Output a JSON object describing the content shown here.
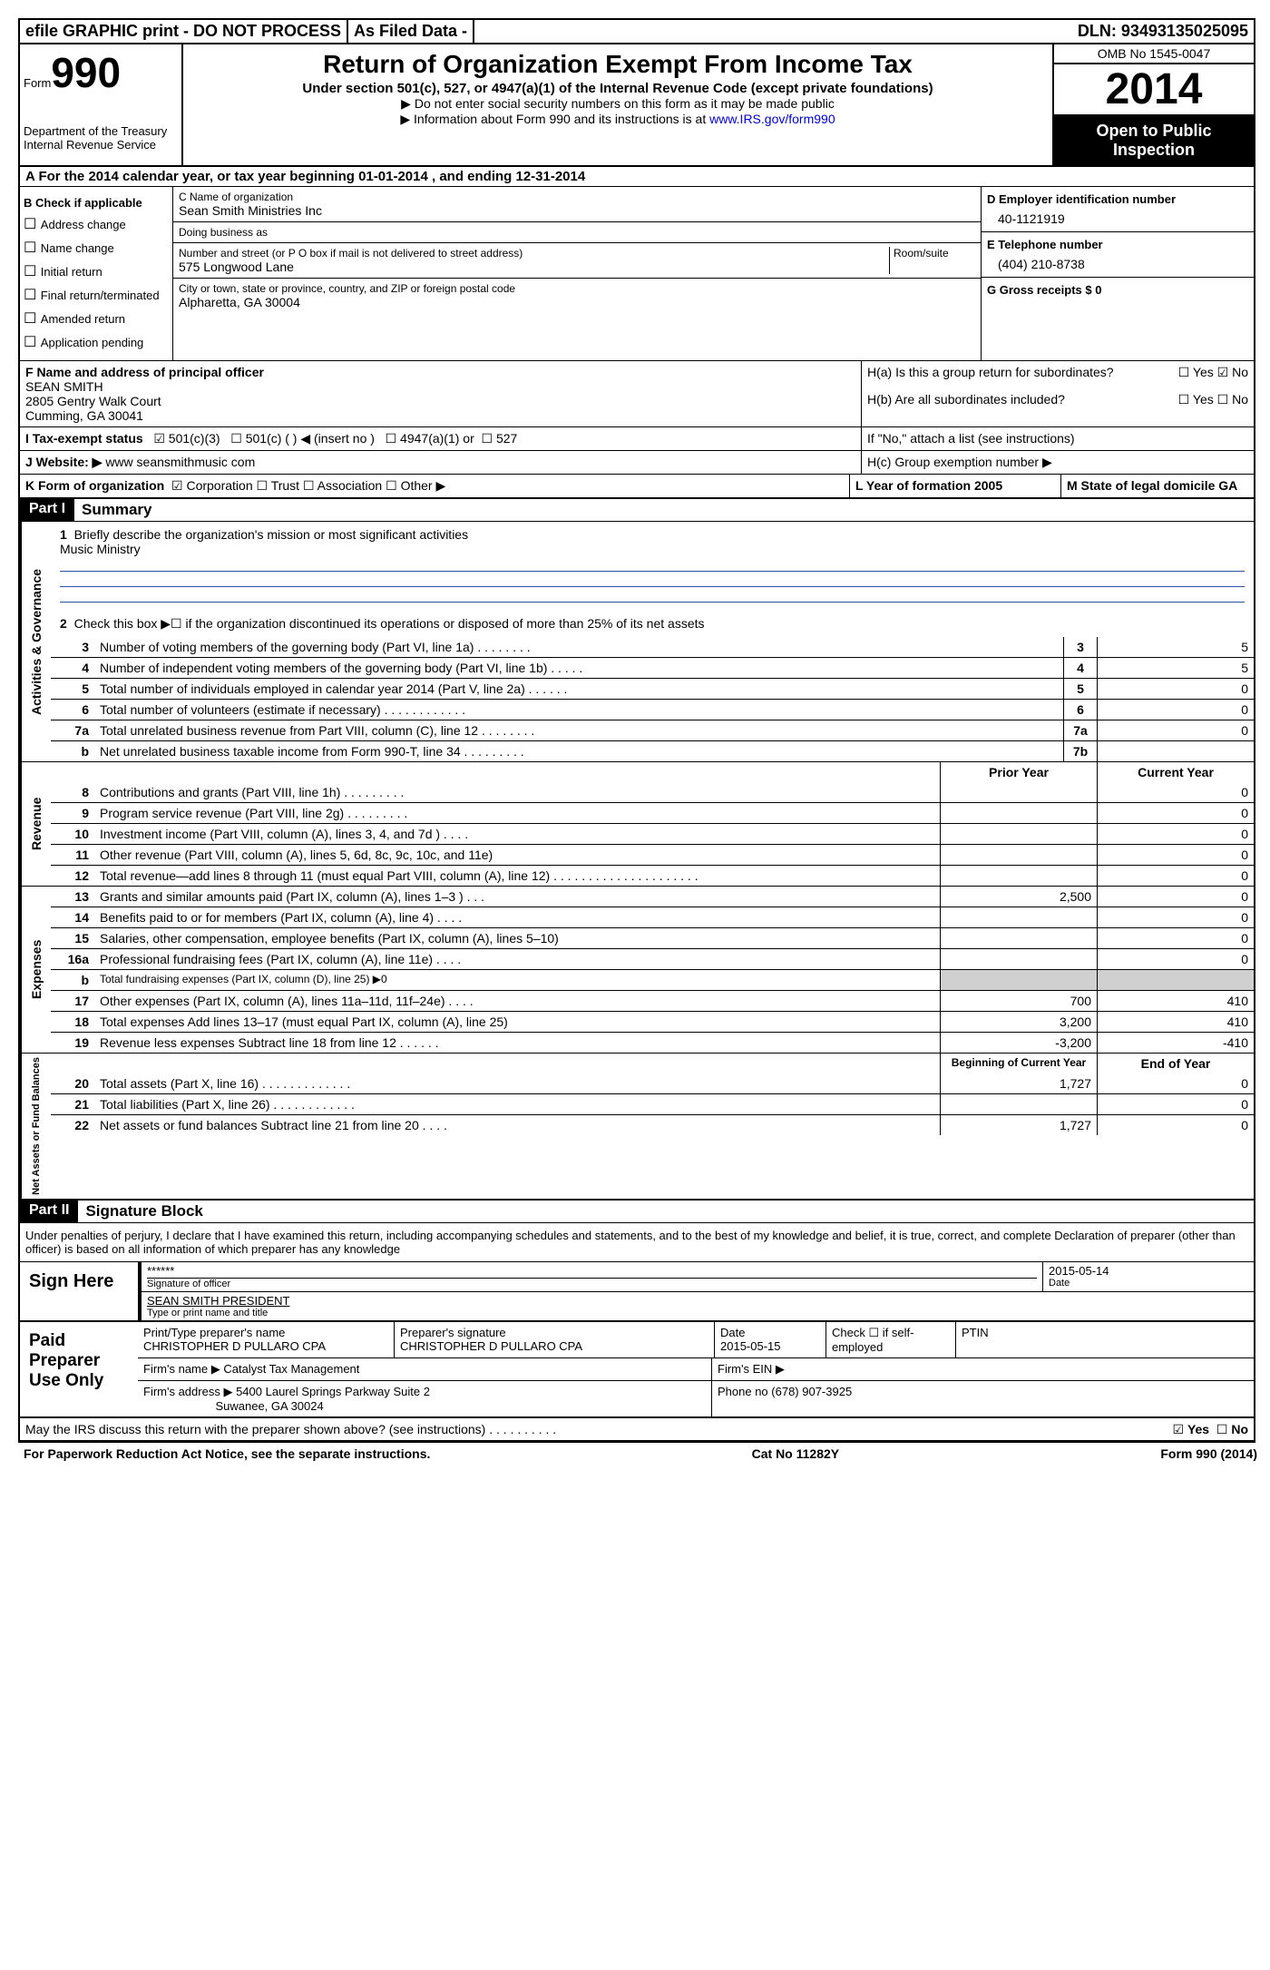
{
  "top": {
    "efile": "efile GRAPHIC print - DO NOT PROCESS",
    "asfiled": "As Filed Data -",
    "dln": "DLN: 93493135025095"
  },
  "header": {
    "form_label": "Form",
    "form_no": "990",
    "dept": "Department of the Treasury",
    "irs": "Internal Revenue Service",
    "title": "Return of Organization Exempt From Income Tax",
    "sub": "Under section 501(c), 527, or 4947(a)(1) of the Internal Revenue Code (except private foundations)",
    "note1": "▶ Do not enter social security numbers on this form as it may be made public",
    "note2": "▶ Information about Form 990 and its instructions is at",
    "irs_link": "www.IRS.gov/form990",
    "omb": "OMB No 1545-0047",
    "year": "2014",
    "open": "Open to Public Inspection"
  },
  "rowA": "A  For the 2014 calendar year, or tax year beginning 01-01-2014     , and ending 12-31-2014",
  "boxB": {
    "title": "B  Check if applicable",
    "opts": [
      "Address change",
      "Name change",
      "Initial return",
      "Final return/terminated",
      "Amended return",
      "Application pending"
    ]
  },
  "boxC": {
    "name_label": "C Name of organization",
    "name": "Sean Smith Ministries Inc",
    "dba_label": "Doing business as",
    "dba": "",
    "street_label": "Number and street (or P O  box if mail is not delivered to street address)",
    "room_label": "Room/suite",
    "street": "575 Longwood Lane",
    "city_label": "City or town, state or province, country, and ZIP or foreign postal code",
    "city": "Alpharetta, GA  30004"
  },
  "boxD": {
    "ein_label": "D Employer identification number",
    "ein": "40-1121919",
    "tel_label": "E Telephone number",
    "tel": "(404) 210-8738",
    "gross_label": "G Gross receipts $ 0"
  },
  "boxF": {
    "label": "F   Name and address of principal officer",
    "name": "SEAN SMITH",
    "addr1": "2805 Gentry Walk Court",
    "addr2": "Cumming, GA  30041"
  },
  "boxH": {
    "ha": "H(a)  Is this a group return for subordinates?",
    "ha_yes": "Yes",
    "ha_no": "No",
    "hb": "H(b)  Are all subordinates included?",
    "hb_note": "If \"No,\" attach a list  (see instructions)",
    "hc": "H(c)  Group exemption number ▶"
  },
  "rowI": {
    "label": "I   Tax-exempt status",
    "o1": "501(c)(3)",
    "o2": "501(c) (   ) ◀ (insert no )",
    "o3": "4947(a)(1) or",
    "o4": "527"
  },
  "rowJ": {
    "label": "J   Website: ▶",
    "val": "www seansmithmusic com"
  },
  "rowK": {
    "label": "K Form of organization",
    "o1": "Corporation",
    "o2": "Trust",
    "o3": "Association",
    "o4": "Other ▶",
    "L": "L Year of formation  2005",
    "M": "M State of legal domicile  GA"
  },
  "part1": {
    "header": "Part I",
    "title": "Summary",
    "q1": "Briefly describe the organization's mission or most significant activities",
    "q1_ans": "Music Ministry",
    "q2": "Check this box ▶☐ if the organization discontinued its operations or disposed of more than 25% of its net assets"
  },
  "act_gov": {
    "label": "Activities & Governance",
    "rows": [
      {
        "n": "3",
        "d": "Number of voting members of the governing body (Part VI, line 1a)   .    .    .    .    .    .    .    .",
        "k": "3",
        "v": "5"
      },
      {
        "n": "4",
        "d": "Number of independent voting members of the governing body (Part VI, line 1b)   .    .    .    .    .",
        "k": "4",
        "v": "5"
      },
      {
        "n": "5",
        "d": "Total number of individuals employed in calendar year 2014 (Part V, line 2a)   .    .    .    .    .    .",
        "k": "5",
        "v": "0"
      },
      {
        "n": "6",
        "d": "Total number of volunteers (estimate if necessary)   .    .    .    .    .    .    .    .    .    .    .    .",
        "k": "6",
        "v": "0"
      },
      {
        "n": "7a",
        "d": "Total unrelated business revenue from Part VIII, column (C), line 12   .    .    .    .    .    .    .    .",
        "k": "7a",
        "v": "0"
      },
      {
        "n": "b",
        "d": "Net unrelated business taxable income from Form 990-T, line 34   .    .    .    .    .    .    .    .    .",
        "k": "7b",
        "v": ""
      }
    ]
  },
  "revenue": {
    "label": "Revenue",
    "header_prior": "Prior Year",
    "header_curr": "Current Year",
    "rows": [
      {
        "n": "8",
        "d": "Contributions and grants (Part VIII, line 1h)   .    .    .    .    .    .    .    .    .",
        "p": "",
        "c": "0"
      },
      {
        "n": "9",
        "d": "Program service revenue (Part VIII, line 2g)   .    .    .    .    .    .    .    .    .",
        "p": "",
        "c": "0"
      },
      {
        "n": "10",
        "d": "Investment income (Part VIII, column (A), lines 3, 4, and 7d )    .    .    .    .",
        "p": "",
        "c": "0"
      },
      {
        "n": "11",
        "d": "Other revenue (Part VIII, column (A), lines 5, 6d, 8c, 9c, 10c, and 11e)",
        "p": "",
        "c": "0"
      },
      {
        "n": "12",
        "d": "Total revenue—add lines 8 through 11 (must equal Part VIII, column (A), line 12)  .    .    .    .    .    .    .    .    .    .    .    .    .    .    .    .    .    .    .    .    .",
        "p": "",
        "c": "0"
      }
    ]
  },
  "expenses": {
    "label": "Expenses",
    "rows": [
      {
        "n": "13",
        "d": "Grants and similar amounts paid (Part IX, column (A), lines 1–3 )   .    .    .",
        "p": "2,500",
        "c": "0"
      },
      {
        "n": "14",
        "d": "Benefits paid to or for members (Part IX, column (A), line 4)   .    .    .    .",
        "p": "",
        "c": "0"
      },
      {
        "n": "15",
        "d": "Salaries, other compensation, employee benefits (Part IX, column (A), lines 5–10)",
        "p": "",
        "c": "0"
      },
      {
        "n": "16a",
        "d": "Professional fundraising fees (Part IX, column (A), line 11e)   .    .    .    .",
        "p": "",
        "c": "0"
      },
      {
        "n": "b",
        "d": "Total fundraising expenses (Part IX, column (D), line 25) ▶0",
        "p": "shaded",
        "c": "shaded"
      },
      {
        "n": "17",
        "d": "Other expenses (Part IX, column (A), lines 11a–11d, 11f–24e)   .    .    .    .",
        "p": "700",
        "c": "410"
      },
      {
        "n": "18",
        "d": "Total expenses  Add lines 13–17 (must equal Part IX, column (A), line 25)",
        "p": "3,200",
        "c": "410"
      },
      {
        "n": "19",
        "d": "Revenue less expenses  Subtract line 18 from line 12   .    .    .    .    .    .",
        "p": "-3,200",
        "c": "-410"
      }
    ]
  },
  "netassets": {
    "label": "Net Assets or Fund Balances",
    "header_beg": "Beginning of Current Year",
    "header_end": "End of Year",
    "rows": [
      {
        "n": "20",
        "d": "Total assets (Part X, line 16)   .    .    .    .    .    .    .    .    .    .    .    .    .",
        "p": "1,727",
        "c": "0"
      },
      {
        "n": "21",
        "d": "Total liabilities (Part X, line 26)   .    .    .    .    .    .    .    .    .    .    .    .",
        "p": "",
        "c": "0"
      },
      {
        "n": "22",
        "d": "Net assets or fund balances  Subtract line 21 from line 20   .    .    .    .",
        "p": "1,727",
        "c": "0"
      }
    ]
  },
  "part2": {
    "header": "Part II",
    "title": "Signature Block",
    "decl": "Under penalties of perjury, I declare that I have examined this return, including accompanying schedules and statements, and to the best of my knowledge and belief, it is true, correct, and complete  Declaration of preparer (other than officer) is based on all information of which preparer has any knowledge"
  },
  "sign": {
    "label": "Sign Here",
    "sig": "******",
    "sig_label": "Signature of officer",
    "date": "2015-05-14",
    "date_label": "Date",
    "name": "SEAN SMITH  PRESIDENT",
    "name_label": "Type or print name and title"
  },
  "prep": {
    "label": "Paid Preparer Use Only",
    "name_label": "Print/Type preparer's name",
    "name": "CHRISTOPHER D PULLARO CPA",
    "sig_label": "Preparer's signature",
    "sig": "CHRISTOPHER D PULLARO CPA",
    "date_label": "Date",
    "date": "2015-05-15",
    "check_label": "Check ☐ if self-employed",
    "ptin_label": "PTIN",
    "firm_label": "Firm's name    ▶",
    "firm": "Catalyst Tax Management",
    "ein_label": "Firm's EIN ▶",
    "addr_label": "Firm's address ▶",
    "addr1": "5400 Laurel Springs Parkway Suite 2",
    "addr2": "Suwanee, GA  30024",
    "phone_label": "Phone no  (678) 907-3925"
  },
  "discuss": {
    "q": "May the IRS discuss this return with the preparer shown above? (see instructions)   .    .    .    .    .    .    .    .    .    .",
    "yes": "Yes",
    "no": "No"
  },
  "footer": {
    "left": "For Paperwork Reduction Act Notice, see the separate instructions.",
    "center": "Cat No  11282Y",
    "right": "Form 990 (2014)"
  }
}
